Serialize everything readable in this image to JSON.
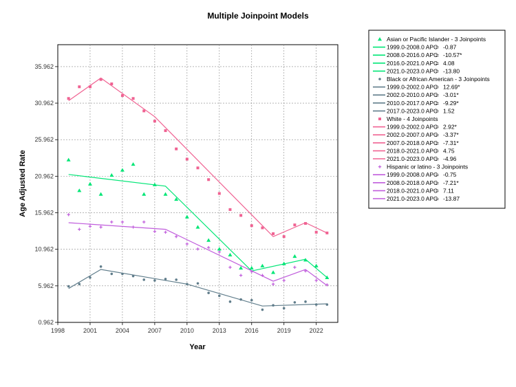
{
  "chart_data": {
    "type": "line",
    "title": "Multiple Joinpoint Models",
    "xlabel": "Year",
    "ylabel": "Age Adjusted Rate",
    "xlim": [
      1998,
      2024
    ],
    "ylim": [
      0.962,
      38.962
    ],
    "x_ticks": [
      1998,
      2001,
      2004,
      2007,
      2010,
      2013,
      2016,
      2019,
      2022
    ],
    "y_ticks": [
      0.962,
      5.962,
      10.962,
      15.962,
      20.962,
      25.962,
      30.962,
      35.962
    ],
    "grid": true,
    "legend_position": "right",
    "series": [
      {
        "name": "Asian or Pacific Islander - 3 Joinpoints",
        "color": "#00e676",
        "marker": "triangle",
        "observed": [
          [
            1999,
            23.2
          ],
          [
            2000,
            19.0
          ],
          [
            2001,
            19.9
          ],
          [
            2002,
            18.5
          ],
          [
            2003,
            21.1
          ],
          [
            2004,
            21.8
          ],
          [
            2005,
            22.6
          ],
          [
            2006,
            18.5
          ],
          [
            2007,
            19.8
          ],
          [
            2008,
            18.5
          ],
          [
            2009,
            17.8
          ],
          [
            2010,
            15.4
          ],
          [
            2011,
            14.0
          ],
          [
            2012,
            12.2
          ],
          [
            2013,
            11.0
          ],
          [
            2014,
            10.2
          ],
          [
            2015,
            8.4
          ],
          [
            2016,
            8.4
          ],
          [
            2017,
            8.7
          ],
          [
            2018,
            7.8
          ],
          [
            2019,
            9.0
          ],
          [
            2020,
            10.0
          ],
          [
            2021,
            9.5
          ],
          [
            2022,
            8.7
          ],
          [
            2023,
            7.1
          ]
        ],
        "fitted": [
          [
            1999,
            21.2
          ],
          [
            2008,
            19.6
          ],
          [
            2016,
            8.0
          ],
          [
            2021,
            9.6
          ],
          [
            2023,
            7.1
          ]
        ],
        "apc": [
          {
            "segment": "1999.0-2008.0",
            "apc": "-0.87"
          },
          {
            "segment": "2008.0-2016.0",
            "apc": "-10.57*"
          },
          {
            "segment": "2016.0-2021.0",
            "apc": "4.08"
          },
          {
            "segment": "2021.0-2023.0",
            "apc": "-13.80"
          }
        ]
      },
      {
        "name": "Black or African American - 3 Joinpoints",
        "color": "#607d8b",
        "marker": "dot",
        "observed": [
          [
            1999,
            5.9
          ],
          [
            2000,
            6.2
          ],
          [
            2001,
            7.1
          ],
          [
            2002,
            8.6
          ],
          [
            2003,
            7.6
          ],
          [
            2004,
            7.6
          ],
          [
            2005,
            7.3
          ],
          [
            2006,
            6.8
          ],
          [
            2007,
            6.7
          ],
          [
            2008,
            6.9
          ],
          [
            2009,
            6.8
          ],
          [
            2010,
            6.2
          ],
          [
            2011,
            6.3
          ],
          [
            2012,
            5.0
          ],
          [
            2013,
            4.6
          ],
          [
            2014,
            3.8
          ],
          [
            2015,
            4.1
          ],
          [
            2016,
            4.0
          ],
          [
            2017,
            2.7
          ],
          [
            2018,
            3.3
          ],
          [
            2019,
            2.9
          ],
          [
            2020,
            3.7
          ],
          [
            2021,
            3.8
          ],
          [
            2022,
            3.4
          ],
          [
            2023,
            3.4
          ]
        ],
        "fitted": [
          [
            1999,
            5.6
          ],
          [
            2002,
            8.2
          ],
          [
            2010,
            6.2
          ],
          [
            2017,
            3.2
          ],
          [
            2023,
            3.5
          ]
        ],
        "apc": [
          {
            "segment": "1999.0-2002.0",
            "apc": "12.69*"
          },
          {
            "segment": "2002.0-2010.0",
            "apc": "-3.01*"
          },
          {
            "segment": "2010.0-2017.0",
            "apc": "-9.29*"
          },
          {
            "segment": "2017.0-2023.0",
            "apc": "1.52"
          }
        ]
      },
      {
        "name": "White - 4 Joinpoints",
        "color": "#f06292",
        "marker": "square",
        "observed": [
          [
            1999,
            31.6
          ],
          [
            2000,
            33.2
          ],
          [
            2001,
            33.2
          ],
          [
            2002,
            34.2
          ],
          [
            2003,
            33.6
          ],
          [
            2004,
            32.0
          ],
          [
            2005,
            31.6
          ],
          [
            2006,
            29.9
          ],
          [
            2007,
            28.5
          ],
          [
            2008,
            27.2
          ],
          [
            2009,
            24.7
          ],
          [
            2010,
            23.3
          ],
          [
            2011,
            22.1
          ],
          [
            2012,
            20.5
          ],
          [
            2013,
            18.6
          ],
          [
            2014,
            16.4
          ],
          [
            2015,
            15.6
          ],
          [
            2016,
            14.2
          ],
          [
            2017,
            13.9
          ],
          [
            2018,
            13.1
          ],
          [
            2019,
            12.7
          ],
          [
            2020,
            14.3
          ],
          [
            2021,
            14.5
          ],
          [
            2022,
            13.3
          ],
          [
            2023,
            13.2
          ]
        ],
        "fitted": [
          [
            1999,
            31.3
          ],
          [
            2002,
            34.4
          ],
          [
            2007,
            29.1
          ],
          [
            2018,
            12.7
          ],
          [
            2021,
            14.6
          ],
          [
            2023,
            13.2
          ]
        ],
        "apc": [
          {
            "segment": "1999.0-2002.0",
            "apc": "2.92*"
          },
          {
            "segment": "2002.0-2007.0",
            "apc": "-3.37*"
          },
          {
            "segment": "2007.0-2018.0",
            "apc": "-7.31*"
          },
          {
            "segment": "2018.0-2021.0",
            "apc": "4.75"
          },
          {
            "segment": "2021.0-2023.0",
            "apc": "-4.96"
          }
        ]
      },
      {
        "name": "Hispanic or latino - 3 Joinpoints",
        "color": "#c05cdc",
        "marker": "plus",
        "observed": [
          [
            1999,
            15.7
          ],
          [
            2000,
            13.7
          ],
          [
            2001,
            14.1
          ],
          [
            2002,
            14.0
          ],
          [
            2003,
            14.7
          ],
          [
            2004,
            14.7
          ],
          [
            2005,
            14.0
          ],
          [
            2006,
            14.7
          ],
          [
            2007,
            13.4
          ],
          [
            2008,
            13.3
          ],
          [
            2009,
            12.7
          ],
          [
            2010,
            11.7
          ],
          [
            2011,
            11.0
          ],
          [
            2012,
            11.2
          ],
          [
            2013,
            10.6
          ],
          [
            2014,
            8.5
          ],
          [
            2015,
            7.4
          ],
          [
            2016,
            7.9
          ],
          [
            2017,
            7.4
          ],
          [
            2018,
            6.2
          ],
          [
            2019,
            6.7
          ],
          [
            2020,
            8.5
          ],
          [
            2021,
            8.0
          ],
          [
            2022,
            6.7
          ],
          [
            2023,
            6.1
          ]
        ],
        "fitted": [
          [
            1999,
            14.6
          ],
          [
            2008,
            13.7
          ],
          [
            2018,
            6.6
          ],
          [
            2021,
            8.2
          ],
          [
            2023,
            6.0
          ]
        ],
        "apc": [
          {
            "segment": "1999.0-2008.0",
            "apc": "-0.75"
          },
          {
            "segment": "2008.0-2018.0",
            "apc": "-7.21*"
          },
          {
            "segment": "2018.0-2021.0",
            "apc": "7.11"
          },
          {
            "segment": "2021.0-2023.0",
            "apc": "-13.87"
          }
        ]
      }
    ]
  }
}
